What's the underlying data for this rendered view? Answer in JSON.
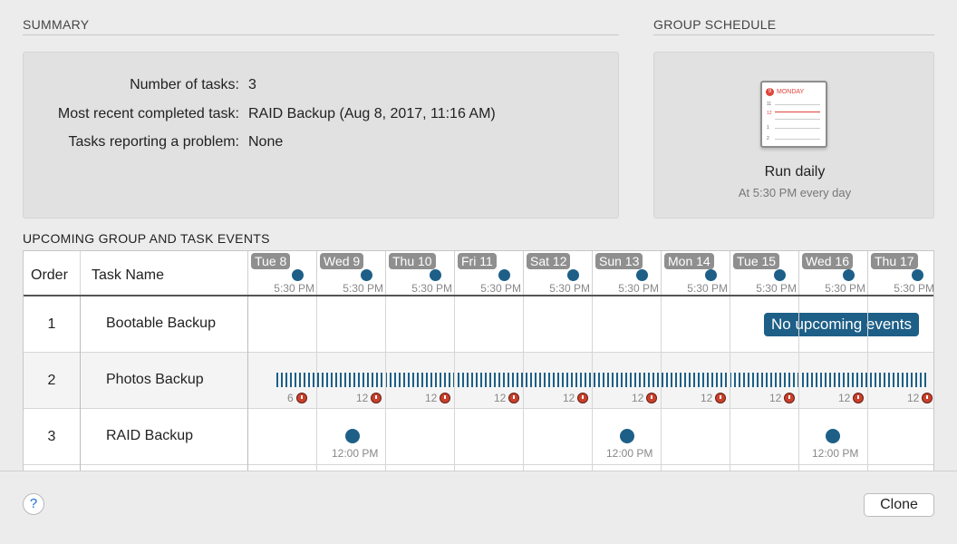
{
  "summary": {
    "title": "SUMMARY",
    "rows": [
      {
        "label": "Number of tasks:",
        "value": "3"
      },
      {
        "label": "Most recent completed task:",
        "value": "RAID Backup (Aug 8, 2017, 11:16 AM)"
      },
      {
        "label": "Tasks reporting a problem:",
        "value": "None"
      }
    ]
  },
  "group_schedule": {
    "title": "GROUP SCHEDULE",
    "icon": "calendar-icon",
    "calendar_header": "MONDAY",
    "calendar_day": "9",
    "calendar_hours": [
      "11",
      "12",
      "1",
      "2"
    ],
    "headline": "Run daily",
    "subline": "At 5:30 PM every day"
  },
  "events": {
    "title": "UPCOMING GROUP AND TASK EVENTS",
    "columns": {
      "order": "Order",
      "task_name": "Task Name"
    },
    "days": [
      {
        "label": "Tue 8",
        "time": "5:30 PM"
      },
      {
        "label": "Wed 9",
        "time": "5:30 PM"
      },
      {
        "label": "Thu 10",
        "time": "5:30 PM"
      },
      {
        "label": "Fri 11",
        "time": "5:30 PM"
      },
      {
        "label": "Sat 12",
        "time": "5:30 PM"
      },
      {
        "label": "Sun 13",
        "time": "5:30 PM"
      },
      {
        "label": "Mon 14",
        "time": "5:30 PM"
      },
      {
        "label": "Tue 15",
        "time": "5:30 PM"
      },
      {
        "label": "Wed 16",
        "time": "5:30 PM"
      },
      {
        "label": "Thu 17",
        "time": "5:30 PM"
      }
    ],
    "tasks": [
      {
        "order": "1",
        "name": "Bootable Backup",
        "status": "No upcoming events"
      },
      {
        "order": "2",
        "name": "Photos Backup",
        "counts": [
          "6",
          "12",
          "12",
          "12",
          "12",
          "12",
          "12",
          "12",
          "12",
          "12"
        ]
      },
      {
        "order": "3",
        "name": "RAID Backup",
        "event_time": "12:00 PM"
      }
    ]
  },
  "footer": {
    "help_label": "?",
    "clone_label": "Clone"
  },
  "colors": {
    "accent": "#1d5f87",
    "alarm": "#c8402b",
    "day_label_bg": "#8f8f8f"
  }
}
